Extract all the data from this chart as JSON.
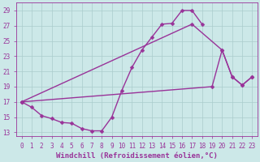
{
  "background_color": "#cce8e8",
  "grid_color": "#aacccc",
  "line_color": "#993399",
  "marker": "D",
  "marker_size": 2.5,
  "line_width": 1.0,
  "xlabel": "Windchill (Refroidissement éolien,°C)",
  "xlabel_fontsize": 6.5,
  "tick_fontsize": 5.5,
  "xlim": [
    -0.5,
    23.5
  ],
  "ylim": [
    12.5,
    30.0
  ],
  "yticks": [
    13,
    15,
    17,
    19,
    21,
    23,
    25,
    27,
    29
  ],
  "xticks": [
    0,
    1,
    2,
    3,
    4,
    5,
    6,
    7,
    8,
    9,
    10,
    11,
    12,
    13,
    14,
    15,
    16,
    17,
    18,
    19,
    20,
    21,
    22,
    23
  ],
  "series": [
    {
      "x": [
        0,
        1,
        2,
        3,
        4,
        5,
        6,
        7,
        8,
        9,
        10,
        11,
        12,
        13,
        14,
        15,
        16,
        17,
        18
      ],
      "y": [
        17.0,
        16.3,
        15.2,
        14.8,
        14.3,
        14.2,
        13.5,
        13.2,
        13.2,
        15.0,
        18.5,
        21.5,
        23.8,
        25.5,
        27.2,
        27.3,
        29.0,
        29.0,
        27.2
      ]
    },
    {
      "x": [
        0,
        17,
        20,
        21,
        22,
        23
      ],
      "y": [
        17.0,
        27.2,
        23.8,
        20.3,
        19.2,
        20.3
      ]
    },
    {
      "x": [
        0,
        19,
        20,
        21,
        22,
        23
      ],
      "y": [
        17.0,
        19.0,
        23.8,
        20.3,
        19.2,
        20.3
      ]
    }
  ]
}
